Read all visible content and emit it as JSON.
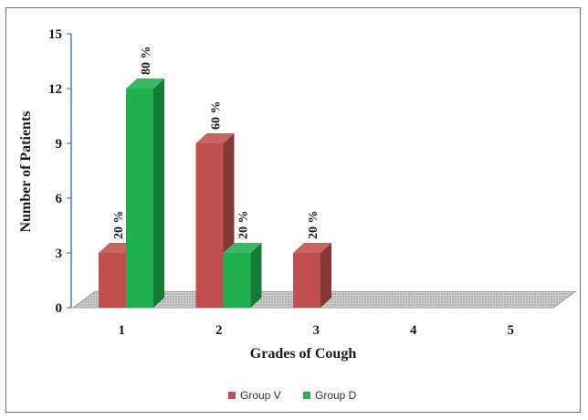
{
  "chart_data": {
    "type": "bar",
    "style": "3d-clustered",
    "categories": [
      "1",
      "2",
      "3",
      "4",
      "5"
    ],
    "series": [
      {
        "name": "Group V",
        "color": "#c0504d",
        "values": [
          3,
          9,
          3,
          0,
          0
        ],
        "labels": [
          "20 %",
          "60 %",
          "20 %",
          "",
          ""
        ]
      },
      {
        "name": "Group D",
        "color": "#1fb050",
        "values": [
          12,
          3,
          0,
          0,
          0
        ],
        "labels": [
          "80 %",
          "20 %",
          "",
          "",
          ""
        ]
      }
    ],
    "xlabel": "Grades of Cough",
    "ylabel": "Number of Patients",
    "yticks": [
      "0",
      "3",
      "6",
      "9",
      "12",
      "15"
    ],
    "ylim": [
      0,
      15
    ],
    "legend": "bottom-center",
    "grid": false
  }
}
